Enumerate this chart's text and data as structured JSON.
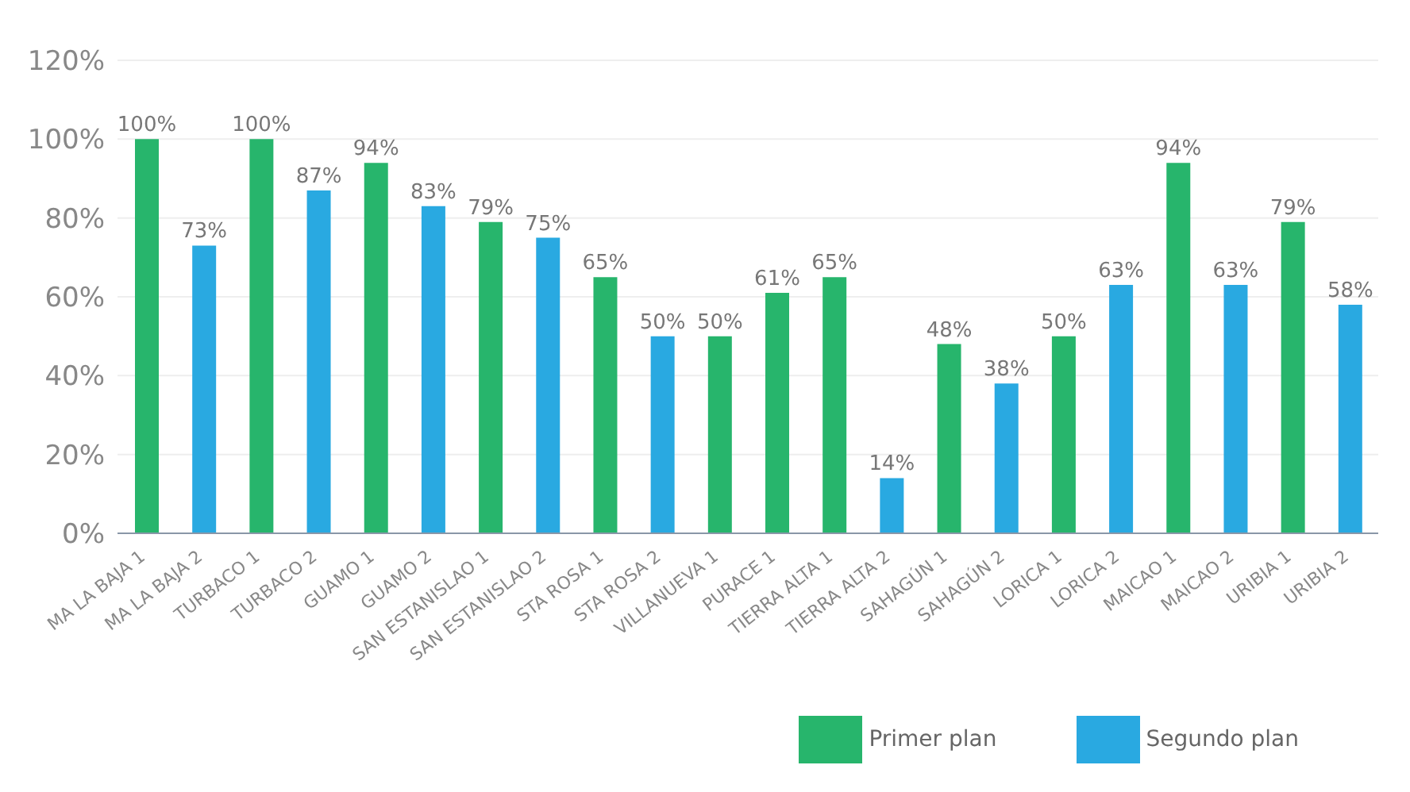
{
  "chart_data": {
    "type": "bar",
    "categories": [
      "MA LA BAJA 1",
      "MA LA BAJA 2",
      "TURBACO 1",
      "TURBACO 2",
      "GUAMO 1",
      "GUAMO 2",
      "SAN ESTANISLAO 1",
      "SAN ESTANISLAO 2",
      "STA ROSA 1",
      "STA ROSA 2",
      "VILLANUEVA 1",
      "PURACE 1",
      "TIERRA ALTA 1",
      "TIERRA ALTA 2",
      "SAHAGÚN 1",
      "SAHAGÚN 2",
      "LORICA 1",
      "LORICA 2",
      "MAICAO 1",
      "MAICAO 2",
      "URIBIA 1",
      "URIBIA 2"
    ],
    "series": [
      {
        "name": "Primer plan",
        "color": "#27b56c",
        "values": [
          100,
          null,
          100,
          null,
          94,
          null,
          79,
          null,
          65,
          null,
          50,
          61,
          65,
          null,
          48,
          null,
          50,
          null,
          94,
          null,
          79,
          null
        ],
        "value_labels": [
          "100%",
          null,
          "100%",
          null,
          "94%",
          null,
          "79%",
          null,
          "65%",
          null,
          "50%",
          "61%",
          "65%",
          null,
          "48%",
          null,
          "50%",
          null,
          "94%",
          null,
          "79%",
          null
        ]
      },
      {
        "name": "Segundo plan",
        "color": "#29a9e1",
        "values": [
          null,
          73,
          null,
          87,
          null,
          83,
          null,
          75,
          null,
          50,
          null,
          null,
          null,
          14,
          null,
          38,
          null,
          63,
          null,
          63,
          null,
          58
        ],
        "value_labels": [
          null,
          "73%",
          null,
          "87%",
          null,
          "83%",
          null,
          "75%",
          null,
          "50%",
          null,
          null,
          null,
          "14%",
          null,
          "38%",
          null,
          "63%",
          null,
          "63%",
          null,
          "58%"
        ]
      }
    ],
    "stacked": true,
    "ylim": [
      0,
      120
    ],
    "yticks": [
      {
        "value": 0,
        "label": "0%"
      },
      {
        "value": 20,
        "label": "20%"
      },
      {
        "value": 40,
        "label": "40%"
      },
      {
        "value": 60,
        "label": "60%"
      },
      {
        "value": 80,
        "label": "80%"
      },
      {
        "value": 100,
        "label": "100%"
      },
      {
        "value": 120,
        "label": "120%"
      }
    ],
    "grid": "y",
    "legend": "bottom right"
  }
}
